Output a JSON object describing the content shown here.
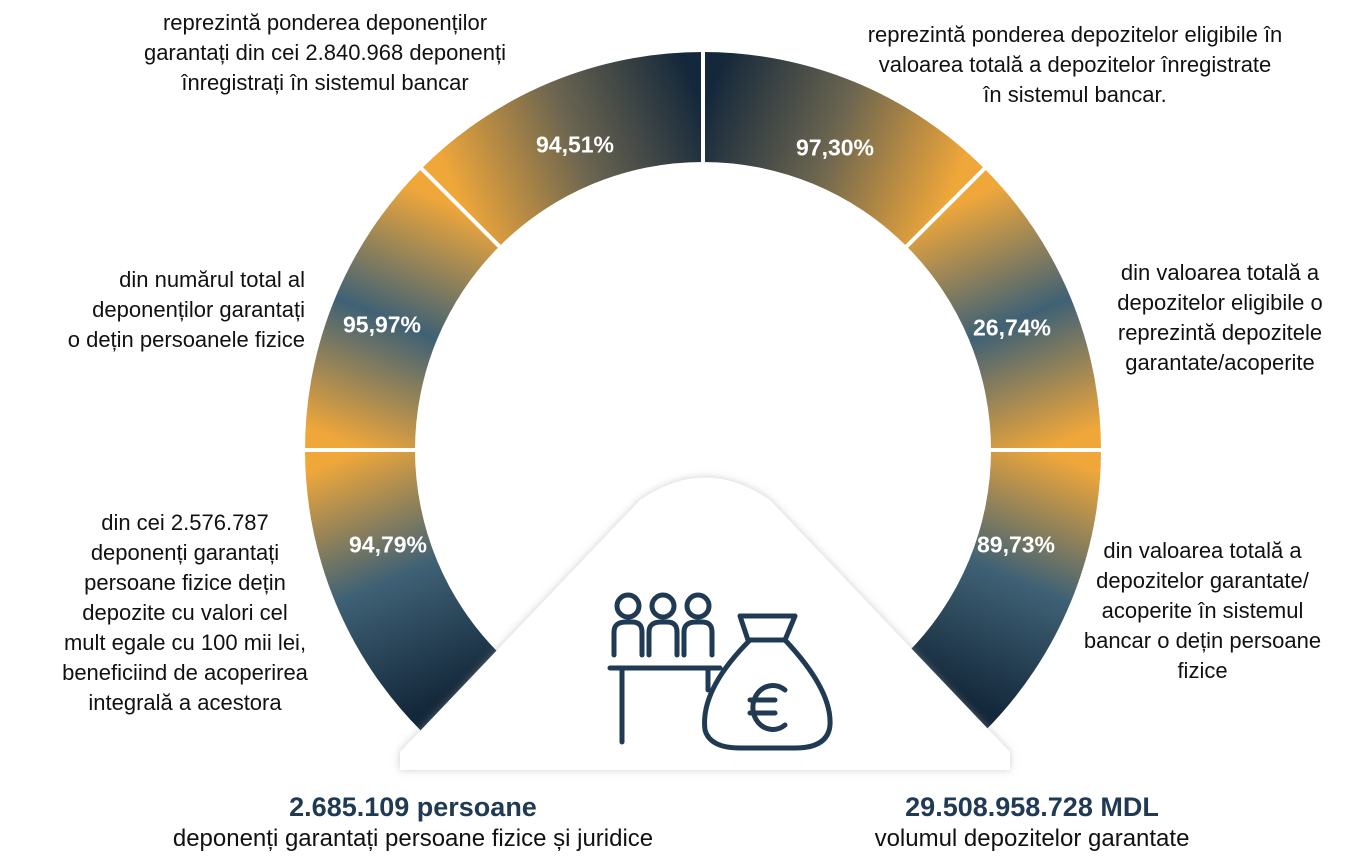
{
  "ring": [
    {
      "value": "94,79%",
      "lines": [
        "din cei 2.576.787",
        "deponenți garantați",
        "persoane fizice dețin",
        "depozite cu valori cel",
        "mult egale cu 100 mii lei,",
        "beneficiind de acoperirea",
        "integrală a acestora"
      ]
    },
    {
      "value": "95,97%",
      "lines": [
        "din numărul total al",
        "deponenților garantați",
        "o dețin persoanele fizice"
      ]
    },
    {
      "value": "94,51%",
      "lines": [
        "reprezintă ponderea deponenților",
        "garantați din cei 2.840.968 deponenți",
        "înregistrați în sistemul bancar"
      ]
    },
    {
      "value": "97,30%",
      "lines": [
        "reprezintă ponderea depozitelor eligibile în",
        "valoarea totală a depozitelor înregistrate",
        "în sistemul bancar."
      ]
    },
    {
      "value": "26,74%",
      "lines": [
        "din valoarea totală a",
        "depozitelor eligibile o",
        "reprezintă depozitele",
        "garantate/acoperite"
      ]
    },
    {
      "value": "89,73%",
      "lines": [
        "din valoarea totală a",
        "depozitelor garantate/",
        "acoperite în sistemul",
        "bancar o dețin persoane",
        "fizice"
      ]
    }
  ],
  "summary": [
    {
      "value": "2.685.109 persoane",
      "description": "deponenți garantați persoane fizice și juridice"
    },
    {
      "value": "29.508.958.728 MDL",
      "description": "volumul depozitelor garantate"
    }
  ]
}
